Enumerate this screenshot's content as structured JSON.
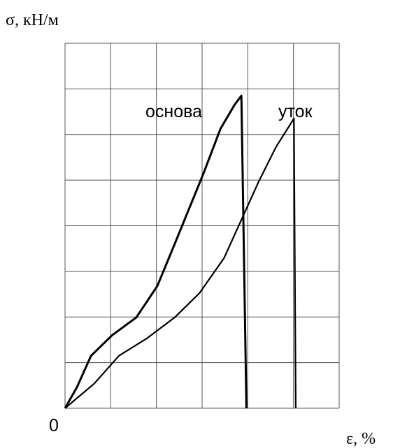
{
  "chart_data": {
    "type": "line",
    "y_label": "σ, кН/м",
    "x_label": "ε, %",
    "origin_label": "0",
    "xlim": [
      0,
      6
    ],
    "ylim": [
      0,
      8
    ],
    "xticks": [
      0,
      1,
      2,
      3,
      4,
      5,
      6
    ],
    "yticks": [
      0,
      1,
      2,
      3,
      4,
      5,
      6,
      7,
      8
    ],
    "grid": true,
    "series": [
      {
        "name": "основа",
        "color": "#000000",
        "x": [
          0,
          0.26,
          0.57,
          1.03,
          1.56,
          2.02,
          2.4,
          2.71,
          3.02,
          3.4,
          3.71,
          3.86,
          3.97
        ],
        "values": [
          0,
          0.46,
          1.15,
          1.6,
          1.99,
          2.68,
          3.6,
          4.36,
          5.12,
          6.12,
          6.65,
          6.85,
          0
        ]
      },
      {
        "name": "уток",
        "color": "#000000",
        "x": [
          0,
          0.64,
          1.18,
          1.79,
          2.4,
          2.94,
          3.48,
          3.86,
          4.24,
          4.62,
          5.01,
          5.05
        ],
        "values": [
          0,
          0.54,
          1.15,
          1.53,
          1.99,
          2.52,
          3.29,
          4.13,
          4.97,
          5.73,
          6.35,
          0
        ]
      }
    ]
  }
}
